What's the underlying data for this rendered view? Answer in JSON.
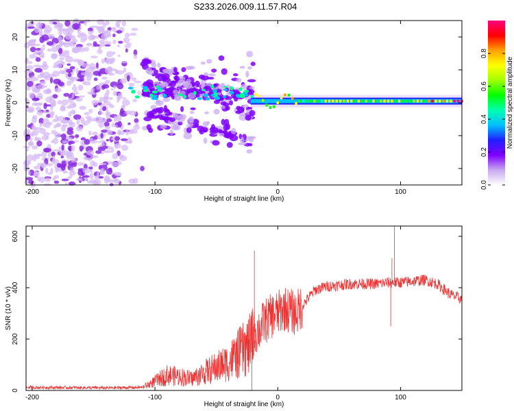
{
  "figure_title": "S233.2026.009.11.57.R04",
  "chart_data": [
    {
      "id": "spectrogram",
      "type": "heatmap",
      "title": "S233.2026.009.11.57.R04",
      "xlabel": "Height of straight line (km)",
      "ylabel": "Frequency (Hz)",
      "xlim": [
        -205,
        150
      ],
      "ylim": [
        -25,
        25
      ],
      "xticks": [
        -200,
        -100,
        0,
        100
      ],
      "yticks": [
        -20,
        -10,
        0,
        10,
        20
      ],
      "colorbar": {
        "label": "Normalized spectral amplitude",
        "range": [
          0,
          1
        ],
        "ticks": [
          "0.0",
          "0.2",
          "0.4",
          "0.6",
          "0.8"
        ],
        "tick_values": [
          0,
          0.2,
          0.4,
          0.6,
          0.8
        ],
        "colors": [
          "#ffffff",
          "#c8a8f0",
          "#7f00ff",
          "#2020ff",
          "#00c0ff",
          "#00ffb0",
          "#00ff00",
          "#a0ff00",
          "#ffff00",
          "#ffa000",
          "#ff0000",
          "#ff0080"
        ]
      },
      "features": {
        "noise_region_x": [
          -205,
          -110
        ],
        "transition_region_x": [
          -110,
          -20
        ],
        "carrier_start_x": 15,
        "carrier_offset_hz": 0.5,
        "carrier_peak_x": [
          120,
          150
        ]
      }
    },
    {
      "id": "snr",
      "type": "line",
      "xlabel": "Height of straight line (km)",
      "ylabel": "SNR (10 * v/v)",
      "xlim": [
        -205,
        150
      ],
      "ylim": [
        0,
        640
      ],
      "xticks": [
        -200,
        -100,
        0,
        100
      ],
      "yticks": [
        0,
        200,
        400,
        600
      ],
      "color": "#ee3333",
      "envelope": {
        "x": [
          -205,
          -140,
          -110,
          -100,
          -90,
          -80,
          -70,
          -60,
          -50,
          -40,
          -30,
          -22,
          -20,
          -15,
          -10,
          -5,
          0,
          5,
          10,
          15,
          20,
          30,
          40,
          50,
          60,
          70,
          80,
          90,
          100,
          110,
          120,
          130,
          140,
          150
        ],
        "y": [
          12,
          10,
          12,
          35,
          60,
          55,
          45,
          70,
          90,
          110,
          150,
          180,
          220,
          240,
          270,
          290,
          300,
          320,
          310,
          300,
          330,
          390,
          405,
          410,
          415,
          415,
          415,
          420,
          420,
          425,
          430,
          415,
          375,
          355
        ]
      },
      "spikes": [
        {
          "x": -19,
          "y": 545
        },
        {
          "x": -18.5,
          "y": 260
        },
        {
          "x": -21,
          "y": 0
        },
        {
          "x": 92,
          "y": 250
        },
        {
          "x": 93,
          "y": 515
        },
        {
          "x": 95,
          "y": 640
        }
      ]
    }
  ]
}
